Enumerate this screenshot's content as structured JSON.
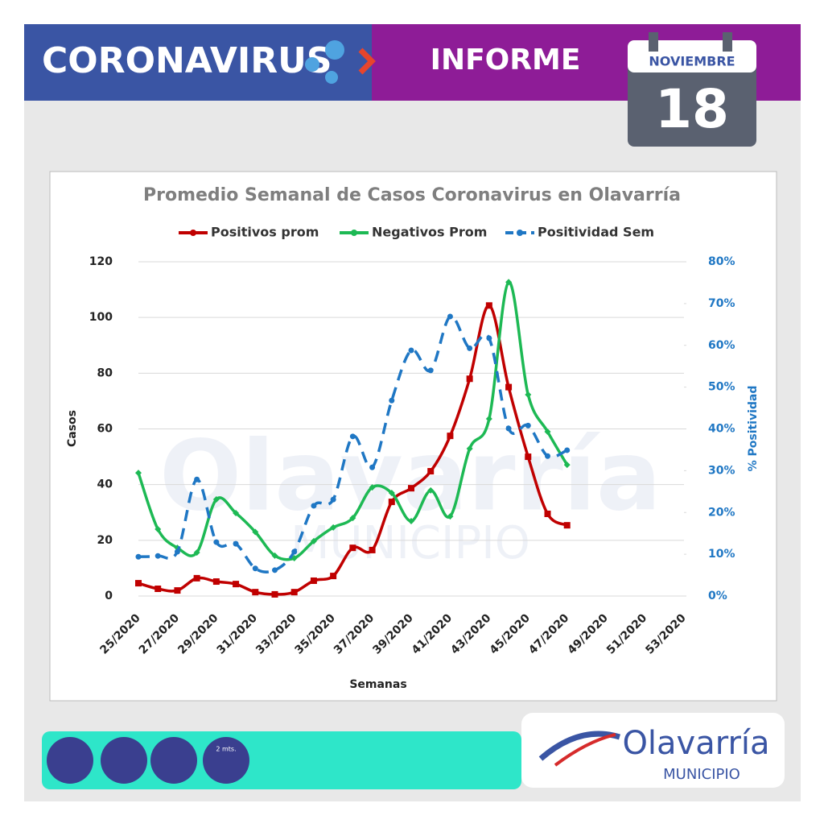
{
  "header": {
    "title": "CORONAVIRUS",
    "subtitle": "INFORME",
    "month": "NOVIEMBRE",
    "day": "18"
  },
  "chart_data": {
    "type": "line",
    "title": "Promedio Semanal de Casos Coronavirus en Olavarría",
    "x_label": "Semanas",
    "y_label": "Casos",
    "y2_label": "% Positividad",
    "categories": [
      "25/2020",
      null,
      "27/2020",
      null,
      "29/2020",
      null,
      "31/2020",
      null,
      "33/2020",
      null,
      "35/2020",
      null,
      "37/2020",
      null,
      "39/2020",
      null,
      "41/2020",
      null,
      "43/2020",
      null,
      "45/2020",
      null,
      "47/2020",
      null,
      "49/2020",
      null,
      "51/2020",
      null,
      "53/2020"
    ],
    "series": [
      {
        "name": "Positivos prom",
        "color": "#c00000",
        "marker": "square",
        "values": [
          4.6,
          2.6,
          2,
          6.4,
          5.2,
          4.3,
          1.4,
          0.6,
          1.4,
          5.5,
          7.2,
          17.3,
          16.5,
          33.8,
          38.7,
          44.8,
          57.5,
          78,
          104.3,
          75,
          50,
          29.5,
          25.4,
          null,
          null,
          null,
          null,
          null,
          null
        ]
      },
      {
        "name": "Negativos Prom",
        "color": "#1db954",
        "marker": "diamond",
        "values": [
          44.2,
          24,
          17.3,
          15.6,
          34.7,
          29.8,
          23,
          14.5,
          13.6,
          19.7,
          24.6,
          28,
          39,
          37,
          26.9,
          37.9,
          28.6,
          52.9,
          63.6,
          112.7,
          72.3,
          59,
          47.1,
          null,
          null,
          null,
          null,
          null,
          null
        ]
      },
      {
        "name": "Positividad Sem",
        "color": "#1f77c4",
        "marker": "circle",
        "dashed": true,
        "axis": "y2",
        "values": [
          9.4,
          9.6,
          10.6,
          27.9,
          12.9,
          12.5,
          6.6,
          6.2,
          10.6,
          21.6,
          23.1,
          38.2,
          30.8,
          46.8,
          58.8,
          54,
          66.9,
          59.3,
          61.7,
          40.1,
          40.8,
          33.5,
          34.9,
          null,
          null,
          null,
          null,
          null,
          null
        ]
      }
    ],
    "ylim": [
      0,
      120
    ],
    "yticks": [
      0,
      20,
      40,
      60,
      80,
      100,
      120
    ],
    "y2lim": [
      0,
      80
    ],
    "y2ticks": [
      {
        "value": 0,
        "label": "0%"
      },
      {
        "value": 10,
        "label": "10%"
      },
      {
        "value": 20,
        "label": "20%"
      },
      {
        "value": 30,
        "label": "30%"
      },
      {
        "value": 40,
        "label": "40%"
      },
      {
        "value": 50,
        "label": "50%"
      },
      {
        "value": 60,
        "label": "60%"
      },
      {
        "value": 70,
        "label": "70%"
      },
      {
        "value": 80,
        "label": "80%"
      }
    ],
    "grid": true,
    "legend": "top"
  },
  "footer": {
    "distance": "2 mts.",
    "logo": "Olavarría",
    "logo_sub": "MUNICIPIO"
  }
}
